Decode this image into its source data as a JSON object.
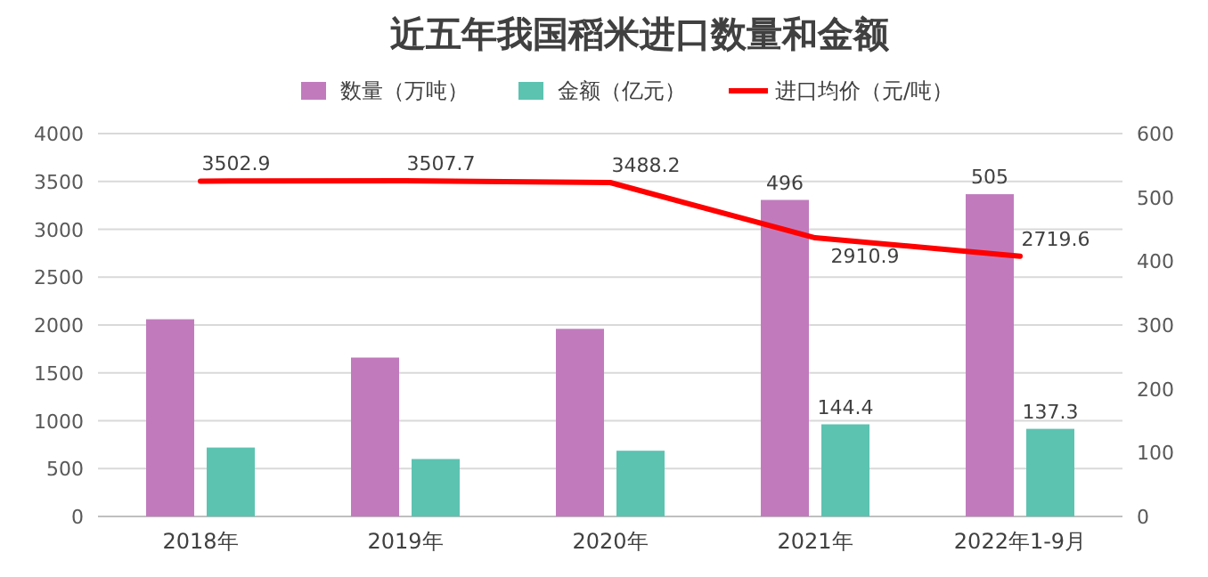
{
  "chart_data": {
    "type": "bar",
    "title": "近五年我国稻米进口数量和金额",
    "categories": [
      "2018年",
      "2019年",
      "2020年",
      "2021年",
      "2022年1-9月"
    ],
    "series": [
      {
        "name": "数量（万吨）",
        "axis": "y2",
        "color": "#c17bbd",
        "values": [
          309,
          249,
          294,
          496,
          505
        ],
        "value_labels": [
          null,
          null,
          null,
          "496",
          "505"
        ]
      },
      {
        "name": "金额（亿元）",
        "axis": "y2",
        "color": "#5cc3b1",
        "values": [
          108,
          90,
          103,
          144.4,
          137.3
        ],
        "value_labels": [
          null,
          null,
          null,
          "144.4",
          "137.3"
        ]
      },
      {
        "name": "进口均价（元/吨）",
        "type": "line",
        "color": "#ff0000",
        "values": [
          3502.9,
          3507.7,
          3488.2,
          2910.9,
          2719.6
        ],
        "value_labels": [
          "3502.9",
          "3507.7",
          "3488.2",
          "2910.9",
          "2719.6"
        ]
      }
    ],
    "ylim": [
      0,
      4000
    ],
    "yticks": [
      0,
      500,
      1000,
      1500,
      2000,
      2500,
      3000,
      3500,
      4000
    ],
    "y2lim": [
      0,
      600
    ],
    "y2ticks": [
      0,
      100,
      200,
      300,
      400,
      500,
      600
    ],
    "grid": "y",
    "legend": "top",
    "marker": "none",
    "line_style": "solid"
  }
}
